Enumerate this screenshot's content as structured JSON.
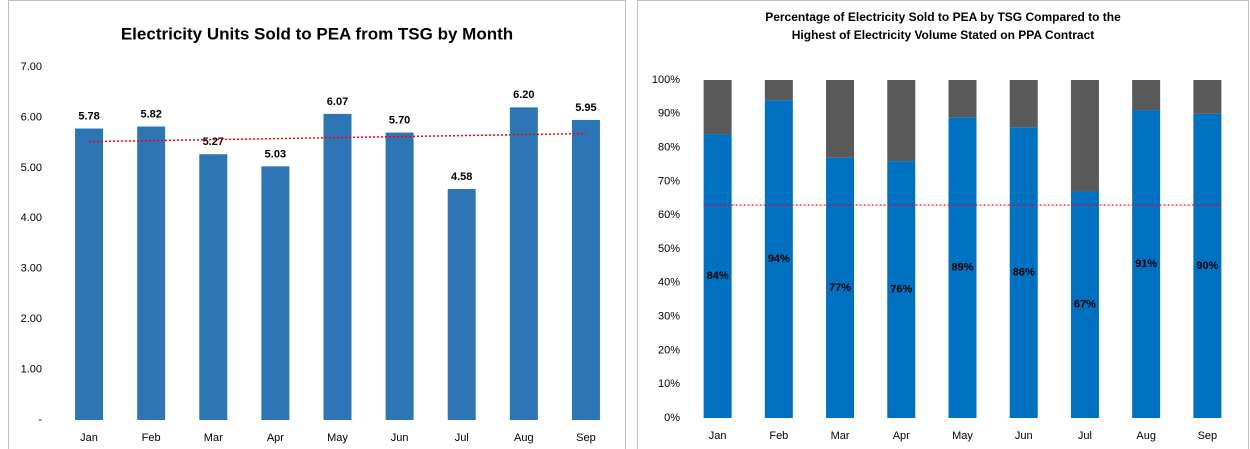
{
  "chart_data": [
    {
      "type": "bar",
      "title": "Electricity Units Sold to PEA from TSG by Month",
      "categories": [
        "Jan",
        "Feb",
        "Mar",
        "Apr",
        "May",
        "Jun",
        "Jul",
        "Aug",
        "Sep"
      ],
      "values": [
        5.78,
        5.82,
        5.27,
        5.03,
        6.07,
        5.7,
        4.58,
        6.2,
        5.95
      ],
      "value_labels": [
        "5.78",
        "5.82",
        "5.27",
        "5.03",
        "6.07",
        "5.70",
        "4.58",
        "6.20",
        "5.95"
      ],
      "color": "#2e75b6",
      "ylim": [
        0,
        7
      ],
      "yticks": [
        {
          "value": 0,
          "label": "-"
        },
        {
          "value": 1,
          "label": "1.00"
        },
        {
          "value": 2,
          "label": "2.00"
        },
        {
          "value": 3,
          "label": "3.00"
        },
        {
          "value": 4,
          "label": "4.00"
        },
        {
          "value": 5,
          "label": "5.00"
        },
        {
          "value": 6,
          "label": "6.00"
        },
        {
          "value": 7,
          "label": "7.00"
        }
      ],
      "trendline": {
        "start": 5.52,
        "end": 5.68,
        "color": "#ff0000"
      },
      "grid": false
    },
    {
      "type": "stacked_bar",
      "title": [
        "Percentage of Electricity Sold to PEA by TSG Compared to the",
        "Highest of Electricity Volume Stated on PPA Contract"
      ],
      "categories": [
        "Jan",
        "Feb",
        "Mar",
        "Apr",
        "May",
        "Jun",
        "Jul",
        "Aug",
        "Sep"
      ],
      "series": [
        {
          "color": "#0070c0",
          "values": [
            84,
            94,
            77,
            76,
            89,
            86,
            67,
            91,
            90
          ],
          "value_labels": [
            "84%",
            "94%",
            "77%",
            "76%",
            "89%",
            "86%",
            "67%",
            "91%",
            "90%"
          ]
        },
        {
          "color": "#595959",
          "values": [
            16,
            6,
            23,
            24,
            11,
            14,
            33,
            9,
            10
          ]
        }
      ],
      "ylim": [
        0,
        100
      ],
      "yticks": [
        {
          "value": 0,
          "label": "0%"
        },
        {
          "value": 10,
          "label": "10%"
        },
        {
          "value": 20,
          "label": "20%"
        },
        {
          "value": 30,
          "label": "30%"
        },
        {
          "value": 40,
          "label": "40%"
        },
        {
          "value": 50,
          "label": "50%"
        },
        {
          "value": 60,
          "label": "60%"
        },
        {
          "value": 70,
          "label": "70%"
        },
        {
          "value": 80,
          "label": "80%"
        },
        {
          "value": 90,
          "label": "90%"
        },
        {
          "value": 100,
          "label": "100%"
        }
      ],
      "reference_line": {
        "value": 63,
        "color": "#ff0000"
      },
      "grid": false
    }
  ]
}
